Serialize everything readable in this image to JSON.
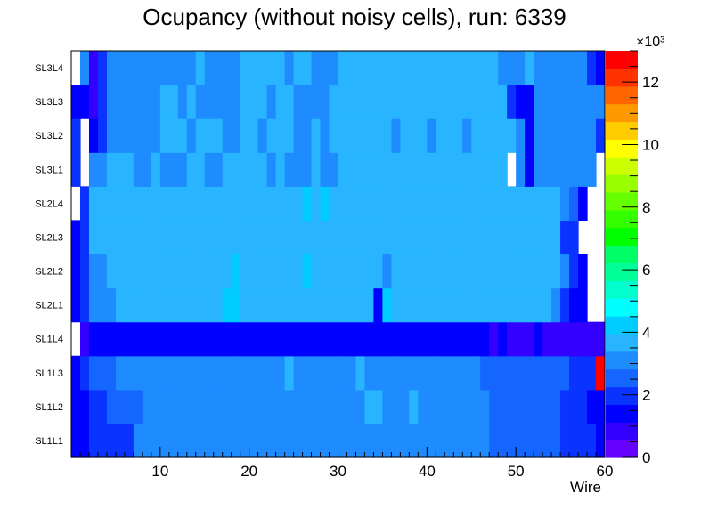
{
  "chart_data": {
    "type": "heatmap",
    "title": "Ocupancy (without noisy cells), run: 6339",
    "xlabel": "Wire",
    "ylabel": "",
    "xlim": [
      0,
      60
    ],
    "x_ticks": [
      10,
      20,
      30,
      40,
      50,
      60
    ],
    "categories_y": [
      "SL1L1",
      "SL1L2",
      "SL1L3",
      "SL1L4",
      "SL2L1",
      "SL2L2",
      "SL2L3",
      "SL2L4",
      "SL3L1",
      "SL3L2",
      "SL3L3",
      "SL3L4"
    ],
    "z_range": [
      0,
      13000
    ],
    "colorbar": {
      "exponent_label": "×10³",
      "ticks": [
        0,
        2,
        4,
        6,
        8,
        10,
        12
      ],
      "multiplier": 1000,
      "colors": [
        "#6600ff",
        "#3300ff",
        "#0000ff",
        "#0a33ff",
        "#1466ff",
        "#1e8cff",
        "#28b4ff",
        "#00ccff",
        "#00ffff",
        "#00ffcc",
        "#00ff99",
        "#00ff66",
        "#00ff00",
        "#33ff00",
        "#66ff00",
        "#99ff00",
        "#ccff00",
        "#ffff00",
        "#ffcc00",
        "#ff9900",
        "#ff6600",
        "#ff3300",
        "#ff0000"
      ]
    },
    "rows": [
      {
        "label": "SL1L1",
        "values": [
          1600,
          1200,
          2000,
          2000,
          2000,
          2000,
          2000,
          3200,
          3200,
          3200,
          3200,
          3200,
          3200,
          3200,
          3200,
          3200,
          3200,
          3200,
          3200,
          3200,
          3200,
          3200,
          3200,
          3200,
          3200,
          3200,
          3200,
          3200,
          3200,
          3200,
          3200,
          3200,
          3200,
          3200,
          3200,
          3200,
          3200,
          3200,
          3200,
          3200,
          3200,
          3200,
          3200,
          3200,
          3200,
          3200,
          3200,
          2600,
          2600,
          2600,
          2600,
          2600,
          2600,
          2600,
          2600,
          2000,
          2000,
          2000,
          2000,
          1500
        ]
      },
      {
        "label": "SL1L2",
        "values": [
          1600,
          1400,
          2000,
          2000,
          2600,
          2600,
          2600,
          2600,
          3200,
          3200,
          3200,
          3200,
          3200,
          3200,
          3200,
          3200,
          3200,
          3200,
          3200,
          3200,
          3200,
          3200,
          3200,
          3200,
          3200,
          3200,
          3200,
          3200,
          3200,
          3200,
          3200,
          3200,
          3200,
          3800,
          3800,
          3200,
          3200,
          3200,
          3800,
          3200,
          3200,
          3200,
          3200,
          3200,
          3200,
          3200,
          3200,
          2600,
          2600,
          2600,
          2600,
          2600,
          2600,
          2600,
          2600,
          2000,
          2000,
          2000,
          1400,
          1400
        ]
      },
      {
        "label": "SL1L3",
        "values": [
          1600,
          2000,
          2600,
          2600,
          2600,
          3200,
          3200,
          3200,
          3200,
          3200,
          3200,
          3200,
          3200,
          3200,
          3200,
          3200,
          3200,
          3200,
          3200,
          3200,
          3200,
          3200,
          3200,
          3200,
          3800,
          3200,
          3200,
          3200,
          3200,
          3200,
          3200,
          3200,
          3800,
          3200,
          3200,
          3200,
          3200,
          3200,
          3200,
          3200,
          3200,
          3200,
          3200,
          3200,
          3200,
          3200,
          2600,
          2600,
          2600,
          2600,
          2600,
          2600,
          2600,
          2600,
          2600,
          2600,
          2000,
          2000,
          2000,
          13000
        ]
      },
      {
        "label": "SL1L4",
        "values": [
          null,
          800,
          1200,
          1200,
          1200,
          1200,
          1200,
          1200,
          1200,
          1200,
          1200,
          1200,
          1200,
          1200,
          1200,
          1200,
          1200,
          1200,
          1200,
          1200,
          1200,
          1200,
          1200,
          1200,
          1200,
          1200,
          1200,
          1200,
          1200,
          1200,
          1200,
          1200,
          1200,
          1200,
          1200,
          1200,
          1200,
          1200,
          1200,
          1200,
          1200,
          1200,
          1200,
          1200,
          1200,
          1200,
          1200,
          800,
          1200,
          800,
          800,
          800,
          1200,
          800,
          800,
          800,
          800,
          800,
          800,
          800
        ]
      },
      {
        "label": "SL2L1",
        "values": [
          1500,
          2000,
          3200,
          3200,
          3200,
          3800,
          3800,
          3800,
          3800,
          3800,
          3800,
          3800,
          3800,
          3800,
          3800,
          3800,
          3800,
          4200,
          4200,
          3800,
          3800,
          3800,
          3800,
          3800,
          3800,
          3800,
          3800,
          3800,
          3800,
          3800,
          3800,
          3800,
          3800,
          3800,
          1200,
          4200,
          3800,
          3800,
          3800,
          3800,
          3800,
          3800,
          3800,
          3800,
          3800,
          3800,
          3800,
          3800,
          3800,
          3800,
          3800,
          3800,
          3800,
          3800,
          3200,
          2000,
          1500,
          1500,
          null,
          null
        ]
      },
      {
        "label": "SL2L2",
        "values": [
          1500,
          2000,
          3200,
          3200,
          3800,
          3800,
          3800,
          3800,
          3800,
          3800,
          3800,
          3800,
          3800,
          3800,
          3800,
          3800,
          3800,
          3800,
          4200,
          3800,
          3800,
          3800,
          3800,
          3800,
          3800,
          3800,
          4200,
          3800,
          3800,
          3800,
          3800,
          3800,
          3800,
          3800,
          3800,
          3200,
          3800,
          3800,
          3800,
          3800,
          3800,
          3800,
          3800,
          3800,
          3800,
          3800,
          3800,
          3800,
          3800,
          3800,
          3800,
          3800,
          3800,
          3800,
          3800,
          3200,
          2000,
          1500,
          null,
          null
        ]
      },
      {
        "label": "SL2L3",
        "values": [
          1500,
          2000,
          3800,
          3800,
          3800,
          3800,
          3800,
          3800,
          3800,
          3800,
          3800,
          3800,
          3800,
          3800,
          3800,
          3800,
          3800,
          3800,
          3800,
          3800,
          3800,
          3800,
          3800,
          3800,
          3800,
          3800,
          3800,
          3800,
          3800,
          3800,
          3800,
          3800,
          3800,
          3800,
          3800,
          3800,
          3800,
          3800,
          3800,
          3800,
          3800,
          3800,
          3800,
          3800,
          3800,
          3800,
          3800,
          3800,
          3800,
          3800,
          3800,
          3800,
          3800,
          3800,
          3800,
          2000,
          2000,
          null,
          null,
          null
        ]
      },
      {
        "label": "SL2L4",
        "values": [
          null,
          2000,
          3800,
          3800,
          3800,
          3800,
          3800,
          3800,
          3800,
          3800,
          3800,
          3800,
          3800,
          3800,
          3800,
          3800,
          3800,
          3800,
          3800,
          3800,
          3800,
          3800,
          3800,
          3800,
          3800,
          3800,
          4200,
          3800,
          4200,
          3800,
          3800,
          3800,
          3800,
          3800,
          3800,
          3800,
          3800,
          3800,
          3800,
          3800,
          3800,
          3800,
          3800,
          3800,
          3800,
          3800,
          3800,
          3800,
          3800,
          3800,
          3800,
          3800,
          3800,
          3800,
          3800,
          3200,
          2600,
          1200,
          null,
          null
        ]
      },
      {
        "label": "SL3L1",
        "values": [
          2000,
          null,
          3200,
          3200,
          3800,
          3800,
          3800,
          3200,
          3200,
          3800,
          3200,
          3200,
          3200,
          3800,
          3800,
          3200,
          3200,
          3800,
          3800,
          3800,
          3800,
          3800,
          3200,
          3800,
          3200,
          3200,
          3200,
          3800,
          3200,
          3200,
          3800,
          3800,
          3800,
          3800,
          3800,
          3800,
          3800,
          3800,
          3800,
          3800,
          3800,
          3800,
          3800,
          3800,
          3800,
          3800,
          3800,
          3800,
          3800,
          null,
          3200,
          1200,
          3200,
          3200,
          3200,
          3200,
          3200,
          3200,
          3200,
          null
        ]
      },
      {
        "label": "SL3L2",
        "values": [
          2000,
          null,
          1200,
          2000,
          3200,
          3200,
          3200,
          3200,
          3200,
          3200,
          3800,
          3800,
          3800,
          3200,
          3800,
          3800,
          3800,
          3200,
          3200,
          3800,
          3800,
          3200,
          3800,
          3800,
          3800,
          3200,
          3200,
          3800,
          3200,
          3800,
          3800,
          3800,
          3800,
          3800,
          3800,
          3800,
          3200,
          3800,
          3800,
          3800,
          3200,
          3800,
          3800,
          3800,
          3200,
          3800,
          3800,
          3800,
          3800,
          3800,
          3200,
          1200,
          3200,
          3200,
          3200,
          3200,
          3200,
          3200,
          3200,
          2000
        ]
      },
      {
        "label": "SL3L3",
        "values": [
          1200,
          1200,
          800,
          2000,
          3200,
          3200,
          3200,
          3200,
          3200,
          3200,
          3800,
          3800,
          3200,
          3800,
          3200,
          3200,
          3200,
          3200,
          3200,
          3800,
          3800,
          3800,
          3200,
          3800,
          3800,
          3200,
          3200,
          3200,
          3200,
          3800,
          3800,
          3800,
          3800,
          3800,
          3800,
          3800,
          3800,
          3800,
          3800,
          3800,
          3800,
          3800,
          3800,
          3800,
          3800,
          3800,
          3800,
          3800,
          3800,
          2000,
          1200,
          1200,
          3200,
          3200,
          3200,
          3200,
          3200,
          3200,
          3200,
          3200
        ]
      },
      {
        "label": "SL3L4",
        "values": [
          null,
          3200,
          800,
          2000,
          3200,
          3200,
          3200,
          3200,
          3200,
          3200,
          3200,
          3200,
          3200,
          3200,
          3800,
          3200,
          3200,
          3200,
          3200,
          3800,
          3800,
          3800,
          3800,
          3800,
          3200,
          3800,
          3800,
          3200,
          3200,
          3200,
          3800,
          3800,
          3800,
          3800,
          3800,
          3800,
          3800,
          3800,
          3800,
          3800,
          3800,
          3800,
          3800,
          3800,
          3800,
          3800,
          3800,
          3800,
          3200,
          3200,
          3200,
          3800,
          3200,
          3200,
          3200,
          3200,
          3200,
          3200,
          2000,
          1200
        ]
      }
    ]
  }
}
